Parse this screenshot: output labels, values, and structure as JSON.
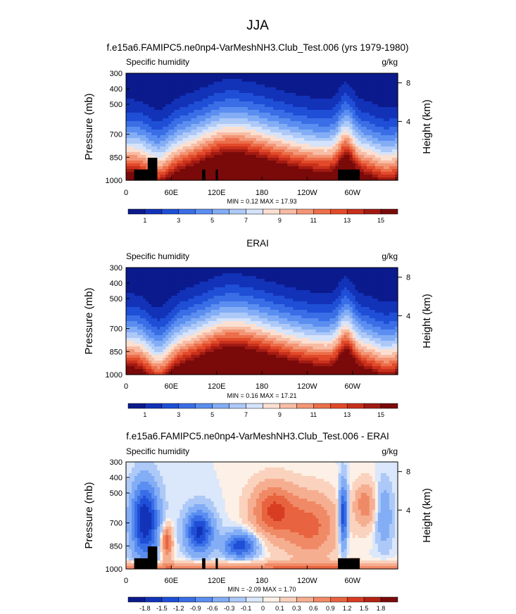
{
  "figure": {
    "title": "JJA"
  },
  "chart_data": [
    {
      "type": "heatmap",
      "title": "f.e15a6.FAMIPC5.ne0np4-VarMeshNH3.Club_Test.006 (yrs 1979-1980)",
      "subtitle_left": "Specific humidity",
      "units": "g/kg",
      "ylabel": "Pressure (mb)",
      "ylabel_right": "Height (km)",
      "x_ticks": [
        "0",
        "60E",
        "120E",
        "180",
        "120W",
        "60W"
      ],
      "y_ticks": [
        "300",
        "400",
        "500",
        "700",
        "850",
        "1000"
      ],
      "y_right_ticks": [
        "8",
        "4"
      ],
      "min_max": "MIN =  0.12  MAX =  17.93",
      "colorbar_labels": [
        "1",
        "3",
        "5",
        "7",
        "9",
        "11",
        "13",
        "15"
      ],
      "min": 0.12,
      "max": 17.93
    },
    {
      "type": "heatmap",
      "title": "ERAI",
      "subtitle_left": "Specific humidity",
      "units": "g/kg",
      "ylabel": "Pressure (mb)",
      "ylabel_right": "Height (km)",
      "x_ticks": [
        "0",
        "60E",
        "120E",
        "180",
        "120W",
        "60W"
      ],
      "y_ticks": [
        "300",
        "400",
        "500",
        "700",
        "850",
        "1000"
      ],
      "y_right_ticks": [
        "8",
        "4"
      ],
      "min_max": "MIN =  0.16  MAX =  17.21",
      "colorbar_labels": [
        "1",
        "3",
        "5",
        "7",
        "9",
        "11",
        "13",
        "15"
      ],
      "min": 0.16,
      "max": 17.21
    },
    {
      "type": "heatmap",
      "title": "f.e15a6.FAMIPC5.ne0np4-VarMeshNH3.Club_Test.006 - ERAI",
      "subtitle_left": "Specific humidity",
      "units": "g/kg",
      "ylabel": "Pressure (mb)",
      "ylabel_right": "Height (km)",
      "x_ticks": [
        "0",
        "60E",
        "120E",
        "180",
        "120W",
        "60W"
      ],
      "y_ticks": [
        "300",
        "400",
        "500",
        "700",
        "850",
        "1000"
      ],
      "y_right_ticks": [
        "8",
        "4"
      ],
      "min_max": "MIN = -2.09  MAX =  1.70",
      "colorbar_labels": [
        "-1.8",
        "-1.5",
        "-1.2",
        "-0.9",
        "-0.6",
        "-0.3",
        "-0.1",
        "0",
        "0.1",
        "0.3",
        "0.6",
        "0.9",
        "1.2",
        "1.5",
        "1.8"
      ],
      "min": -2.09,
      "max": 1.7
    }
  ],
  "colors": {
    "abs_palette": [
      "#0b1a8c",
      "#1232b8",
      "#1f4fd6",
      "#3a6ee6",
      "#5b8ef0",
      "#83adf5",
      "#adc9f8",
      "#d5e3fb",
      "#fbe0d2",
      "#f8bca4",
      "#f39676",
      "#ec6f4b",
      "#e24a2a",
      "#c8301c",
      "#a11a12",
      "#7a0a0a"
    ],
    "diff_palette": [
      "#0b1a8c",
      "#1232b8",
      "#1f4fd6",
      "#3a6ee6",
      "#5b8ef0",
      "#83adf5",
      "#adc9f8",
      "#dbe7fb",
      "#fdf0e6",
      "#fad2bd",
      "#f6ae91",
      "#f08a66",
      "#e8633f",
      "#d83d22",
      "#b42214",
      "#7a0a0a"
    ],
    "terrain": "#000000"
  }
}
